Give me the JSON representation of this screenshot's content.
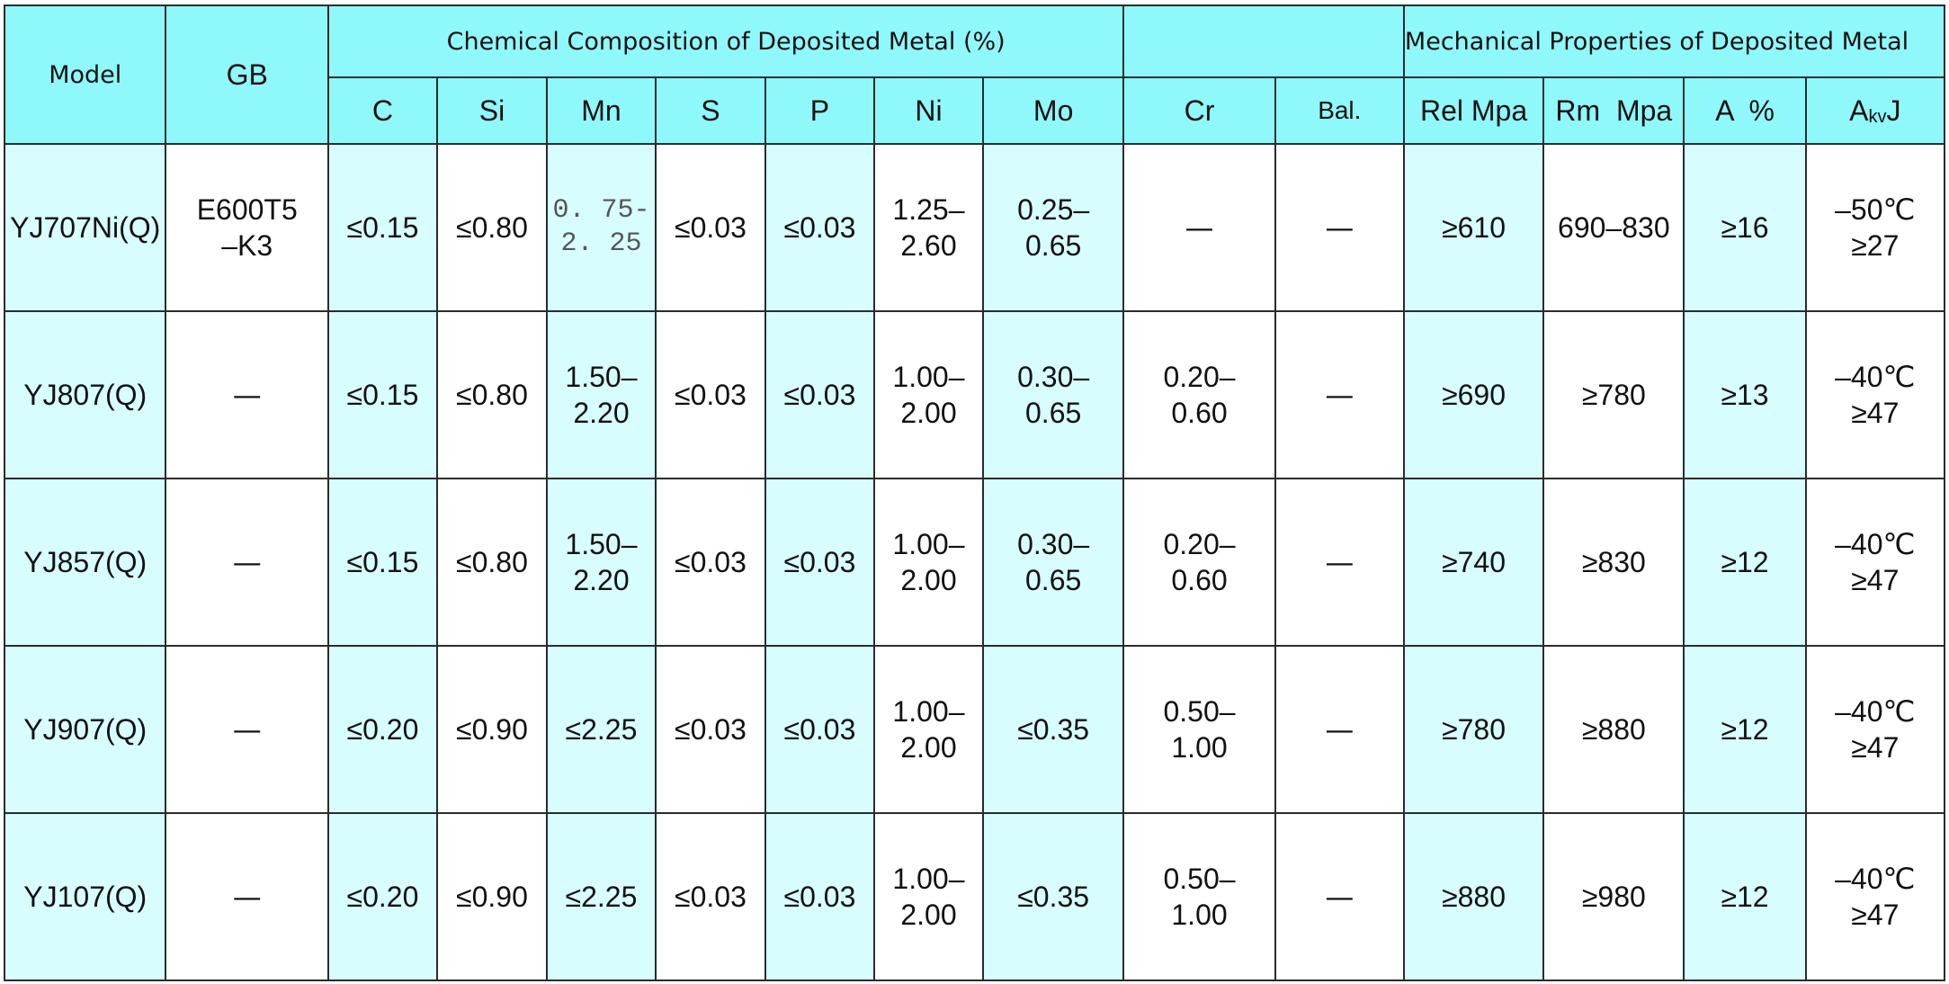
{
  "header": {
    "model": "Model",
    "gb": "GB",
    "chem_group": "Chemical Composition of Deposited Metal (%)",
    "mech_group": "Mechanical Properties of Deposited Metal",
    "cols": {
      "c": "C",
      "si": "Si",
      "mn": "Mn",
      "s": "S",
      "p": "P",
      "ni": "Ni",
      "mo": "Mo",
      "cr": "Cr",
      "bal": "Bal.",
      "rel": "Rel Mpa",
      "rm": "Rm  Mpa",
      "a": "A  %",
      "akv_a": "A",
      "akv_sub": "kv",
      "akv_j": "J"
    }
  },
  "rows": [
    {
      "model": "YJ707Ni(Q)",
      "gb": "E600T5\n–K3",
      "c": "≤0.15",
      "si": "≤0.80",
      "mn": "0. 75-\n2. 25",
      "s": "≤0.03",
      "p": "≤0.03",
      "ni": "1.25–\n2.60",
      "mo": "0.25–\n0.65",
      "cr": "—",
      "bal": "—",
      "rel": "≥610",
      "rm": "690–830",
      "a": "≥16",
      "akv": "–50℃\n≥27"
    },
    {
      "model": "YJ807(Q)",
      "gb": "—",
      "c": "≤0.15",
      "si": "≤0.80",
      "mn": "1.50–\n2.20",
      "s": "≤0.03",
      "p": "≤0.03",
      "ni": "1.00–\n2.00",
      "mo": "0.30–\n0.65",
      "cr": "0.20–\n0.60",
      "bal": "—",
      "rel": "≥690",
      "rm": "≥780",
      "a": "≥13",
      "akv": "–40℃\n≥47"
    },
    {
      "model": "YJ857(Q)",
      "gb": "—",
      "c": "≤0.15",
      "si": "≤0.80",
      "mn": "1.50–\n2.20",
      "s": "≤0.03",
      "p": "≤0.03",
      "ni": "1.00–\n2.00",
      "mo": "0.30–\n0.65",
      "cr": "0.20–\n0.60",
      "bal": "—",
      "rel": "≥740",
      "rm": "≥830",
      "a": "≥12",
      "akv": "–40℃\n≥47"
    },
    {
      "model": "YJ907(Q)",
      "gb": "—",
      "c": "≤0.20",
      "si": "≤0.90",
      "mn": "≤2.25",
      "s": "≤0.03",
      "p": "≤0.03",
      "ni": "1.00–\n2.00",
      "mo": "≤0.35",
      "cr": "0.50–\n1.00",
      "bal": "—",
      "rel": "≥780",
      "rm": "≥880",
      "a": "≥12",
      "akv": "–40℃\n≥47"
    },
    {
      "model": "YJ107(Q)",
      "gb": "—",
      "c": "≤0.20",
      "si": "≤0.90",
      "mn": "≤2.25",
      "s": "≤0.03",
      "p": "≤0.03",
      "ni": "1.00–\n2.00",
      "mo": "≤0.35",
      "cr": "0.50–\n1.00",
      "bal": "—",
      "rel": "≥880",
      "rm": "≥980",
      "a": "≥12",
      "akv": "–40℃\n≥47"
    }
  ],
  "colors": {
    "header_cyan": "#8ff8fb",
    "pale_cyan": "#d7fdfe",
    "border": "#2b2b2b"
  }
}
